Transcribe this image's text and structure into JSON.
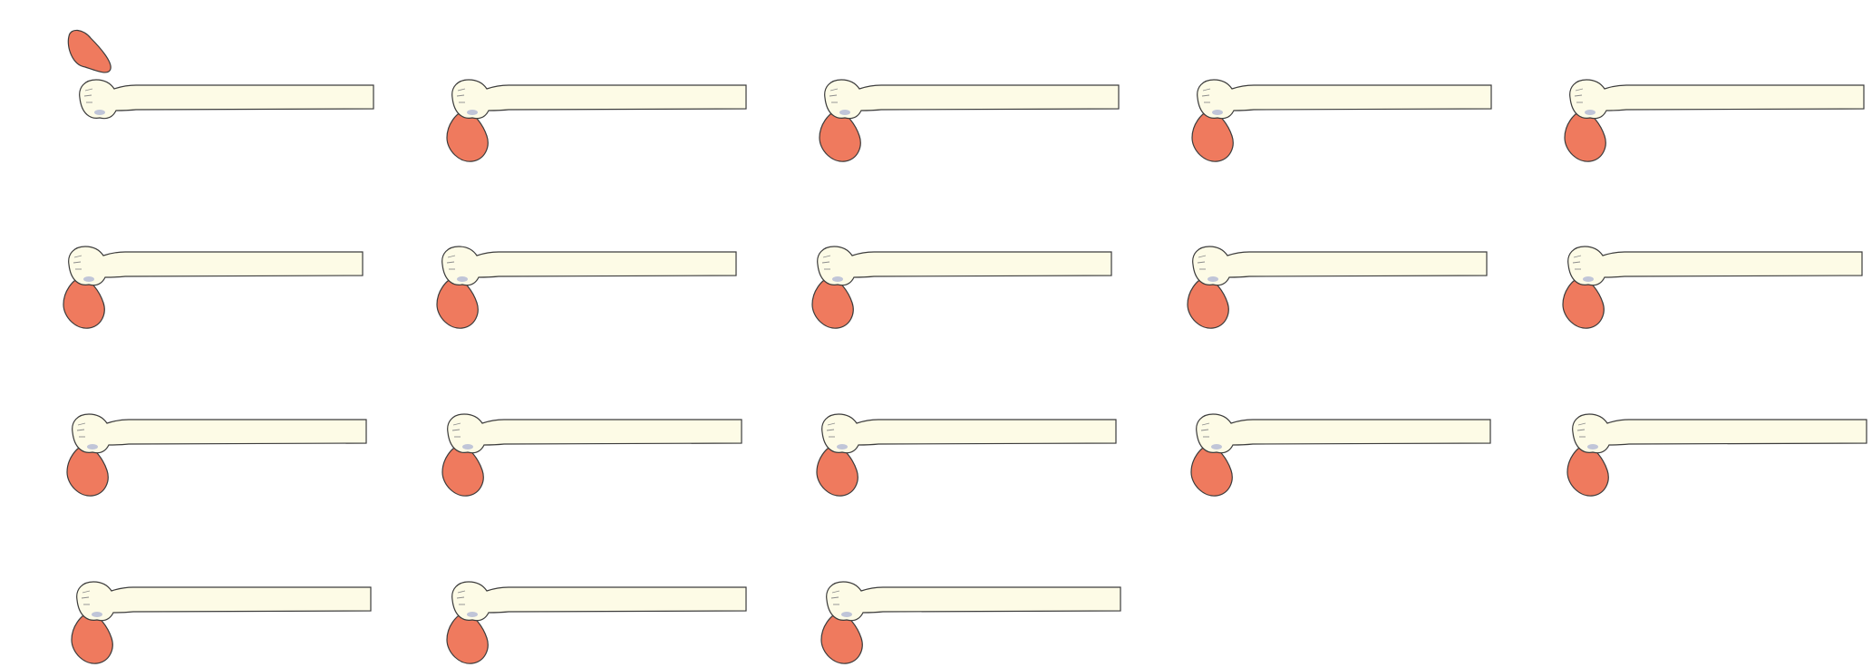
{
  "figure": {
    "panel_count": 18,
    "columns": 5,
    "colors": {
      "background": "#ffffff",
      "shaft_fill": "#fdfbe6",
      "bulb_fill": "#ef7a5e",
      "outline": "#3c3c3c",
      "highlight": "#b9bfd6",
      "creases": "#8c8c8c"
    },
    "panels": [
      {
        "index": 1,
        "bulb_position": "above"
      },
      {
        "index": 2,
        "bulb_position": "below"
      },
      {
        "index": 3,
        "bulb_position": "below"
      },
      {
        "index": 4,
        "bulb_position": "below"
      },
      {
        "index": 5,
        "bulb_position": "below"
      },
      {
        "index": 6,
        "bulb_position": "below"
      },
      {
        "index": 7,
        "bulb_position": "below"
      },
      {
        "index": 8,
        "bulb_position": "below"
      },
      {
        "index": 9,
        "bulb_position": "below"
      },
      {
        "index": 10,
        "bulb_position": "below"
      },
      {
        "index": 11,
        "bulb_position": "below"
      },
      {
        "index": 12,
        "bulb_position": "below"
      },
      {
        "index": 13,
        "bulb_position": "below"
      },
      {
        "index": 14,
        "bulb_position": "below"
      },
      {
        "index": 15,
        "bulb_position": "below"
      },
      {
        "index": 16,
        "bulb_position": "below"
      },
      {
        "index": 17,
        "bulb_position": "below"
      },
      {
        "index": 18,
        "bulb_position": "below"
      }
    ]
  }
}
